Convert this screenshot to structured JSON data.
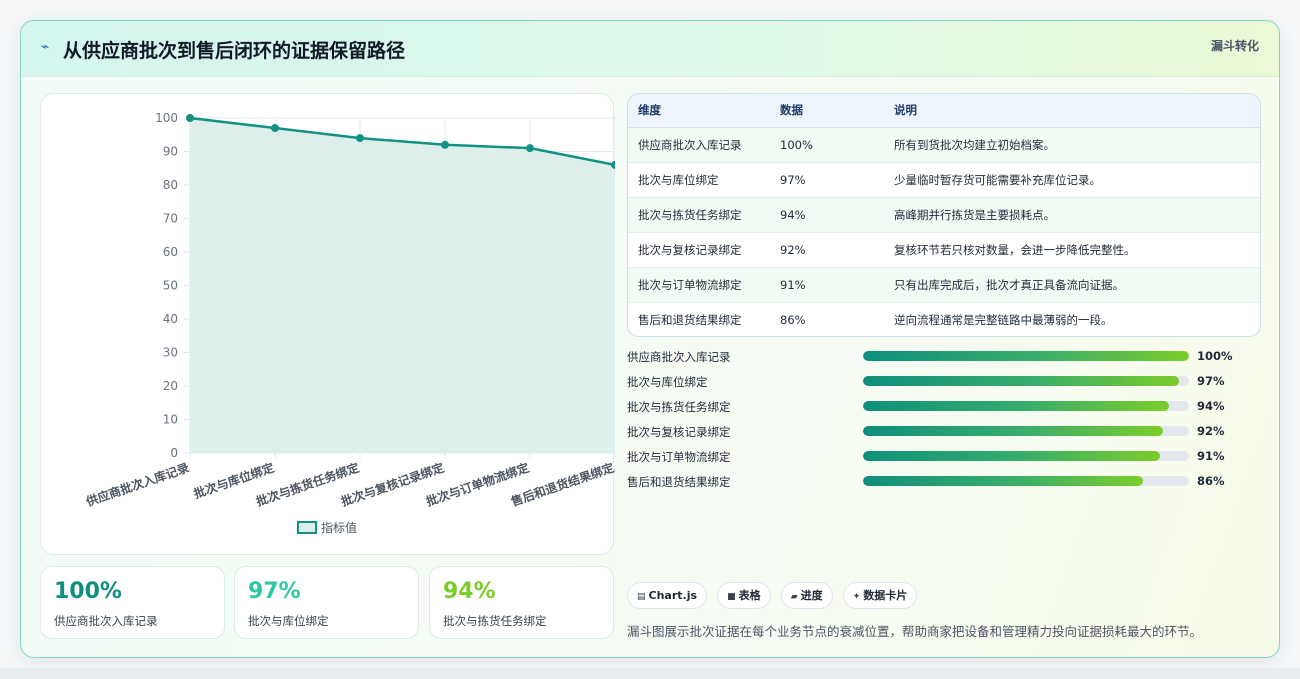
{
  "header": {
    "icon": "lightning-icon",
    "title": "从供应商批次到售后闭环的证据保留路径",
    "tag": "漏斗转化"
  },
  "chart_data": {
    "type": "line",
    "categories": [
      "供应商批次入库记录",
      "批次与库位绑定",
      "批次与拣货任务绑定",
      "批次与复核记录绑定",
      "批次与订单物流绑定",
      "售后和退货结果绑定"
    ],
    "series": [
      {
        "name": "指标值",
        "values": [
          100,
          97,
          94,
          92,
          91,
          86
        ]
      }
    ],
    "ylim": [
      0,
      100
    ],
    "yticks": [
      0,
      10,
      20,
      30,
      40,
      50,
      60,
      70,
      80,
      90,
      100
    ],
    "grid": true,
    "legend": "bottom",
    "line_color": "#139184",
    "fill_color": "#dcefeb"
  },
  "stats": [
    {
      "value": "100%",
      "label": "供应商批次入库记录",
      "color": "#0f8f7e"
    },
    {
      "value": "97%",
      "label": "批次与库位绑定",
      "color": "#2ec9a4"
    },
    {
      "value": "94%",
      "label": "批次与拣货任务绑定",
      "color": "#7ccd2a"
    }
  ],
  "table": {
    "headers": [
      "维度",
      "数据",
      "说明"
    ],
    "rows": [
      [
        "供应商批次入库记录",
        "100%",
        "所有到货批次均建立初始档案。"
      ],
      [
        "批次与库位绑定",
        "97%",
        "少量临时暂存货可能需要补充库位记录。"
      ],
      [
        "批次与拣货任务绑定",
        "94%",
        "高峰期并行拣货是主要损耗点。"
      ],
      [
        "批次与复核记录绑定",
        "92%",
        "复核环节若只核对数量，会进一步降低完整性。"
      ],
      [
        "批次与订单物流绑定",
        "91%",
        "只有出库完成后，批次才真正具备流向证据。"
      ],
      [
        "售后和退货结果绑定",
        "86%",
        "逆向流程通常是完整链路中最薄弱的一段。"
      ]
    ]
  },
  "progress": [
    {
      "label": "供应商批次入库记录",
      "value": 100,
      "display": "100%"
    },
    {
      "label": "批次与库位绑定",
      "value": 97,
      "display": "97%"
    },
    {
      "label": "批次与拣货任务绑定",
      "value": 94,
      "display": "94%"
    },
    {
      "label": "批次与复核记录绑定",
      "value": 92,
      "display": "92%"
    },
    {
      "label": "批次与订单物流绑定",
      "value": 91,
      "display": "91%"
    },
    {
      "label": "售后和退货结果绑定",
      "value": 86,
      "display": "86%"
    }
  ],
  "chips": [
    {
      "icon": "chart-icon",
      "glyph": "▤",
      "label": "Chart.js"
    },
    {
      "icon": "table-icon",
      "glyph": "■",
      "label": "表格"
    },
    {
      "icon": "progress-icon",
      "glyph": "▰",
      "label": "进度"
    },
    {
      "icon": "card-icon",
      "glyph": "✦",
      "label": "数据卡片"
    }
  ],
  "footnote": "漏斗图展示批次证据在每个业务节点的衰减位置，帮助商家把设备和管理精力投向证据损耗最大的环节。"
}
